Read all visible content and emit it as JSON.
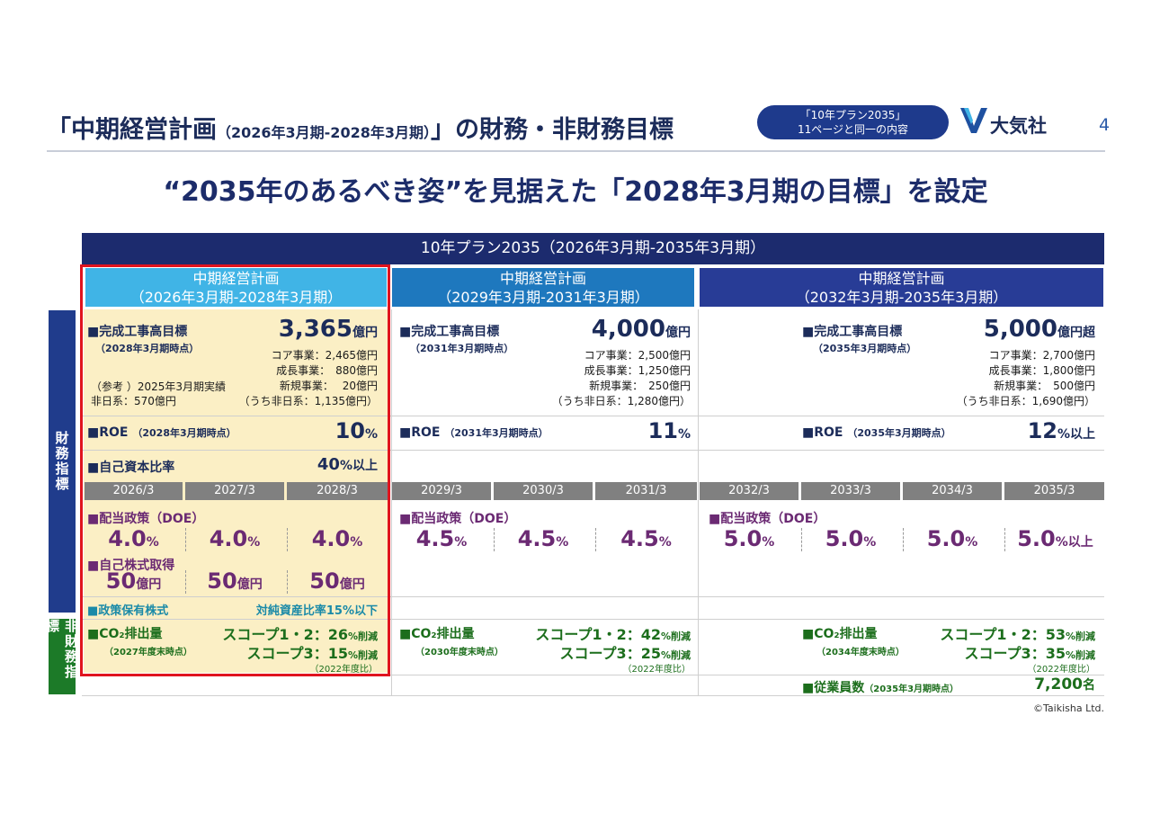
{
  "header": {
    "title_pre": "「中期経営計画",
    "title_paren": "（2026年3月期-2028年3月期）",
    "title_post": "」の財務・非財務目標",
    "ref_line1": "「10年プラン2035」",
    "ref_line2": "11ページと同一の内容",
    "logo_text": "大気社",
    "page_number": "4"
  },
  "headline": "“2035年のあるべき姿”を見据えた「2028年3月期の目標」を設定",
  "plan": {
    "title": "10年プラン2035（2026年3月期-2035年3月期）",
    "periods": [
      {
        "line1": "中期経営計画",
        "line2": "（2026年3月期-2028年3月期）"
      },
      {
        "line1": "中期経営計画",
        "line2": "（2029年3月期-2031年3月期）"
      },
      {
        "line1": "中期経営計画",
        "line2": "（2032年3月期-2035年3月期）"
      }
    ]
  },
  "side_labels": {
    "financial": "財務指標",
    "nonfinancial": "非財務指標"
  },
  "p1": {
    "orders_label": "■完成工事高目標",
    "orders_note": "（2028年3月期時点）",
    "orders_value": "3,365",
    "orders_unit": "億円",
    "core": "コア事業：2,465億円",
    "growth": "成長事業：　880億円",
    "newbiz": "新規事業：　 20億円",
    "non_japan": "（うち非日系：1,135億円）",
    "ref_line1": "（参考 ）2025年3月期実績",
    "ref_line2": "非日系：570億円",
    "roe_label": "■ROE",
    "roe_note": "（2028年3月期時点）",
    "roe_value": "10",
    "roe_unit": "%",
    "equity_label": "■自己資本比率",
    "equity_value": "40",
    "equity_unit": "%以上",
    "doe_label": "■配当政策（DOE）",
    "doe_values": [
      "4.0",
      "4.0",
      "4.0"
    ],
    "doe_unit": "%",
    "buyback_label": "■自己株式取得",
    "buyback_values": [
      "50",
      "50",
      "50"
    ],
    "buyback_unit": "億円",
    "policy_label": "■政策保有株式",
    "policy_value": "対純資産比率15%以下",
    "co2_label": "■CO₂排出量",
    "co2_note": "（2027年度末時点）",
    "scope12": "スコープ1・2：26",
    "scope3": "スコープ3：15",
    "reduction": "%削減",
    "base_note": "（2022年度比）"
  },
  "p2": {
    "orders_label": "■完成工事高目標",
    "orders_note": "（2031年3月期時点）",
    "orders_value": "4,000",
    "orders_unit": "億円",
    "core": "コア事業：2,500億円",
    "growth": "成長事業：1,250億円",
    "newbiz": "新規事業：　250億円",
    "non_japan": "（うち非日系：1,280億円）",
    "roe_label": "■ROE",
    "roe_note": "（2031年3月期時点）",
    "roe_value": "11",
    "roe_unit": "%",
    "doe_label": "■配当政策（DOE）",
    "doe_values": [
      "4.5",
      "4.5",
      "4.5"
    ],
    "doe_unit": "%",
    "co2_label": "■CO₂排出量",
    "co2_note": "（2030年度末時点）",
    "scope12": "スコープ1・2：42",
    "scope3": "スコープ3：25",
    "reduction": "%削減",
    "base_note": "（2022年度比）"
  },
  "p3": {
    "orders_label": "■完成工事高目標",
    "orders_note": "（2035年3月期時点）",
    "orders_value": "5,000",
    "orders_unit": "億円超",
    "core": "コア事業：2,700億円",
    "growth": "成長事業：1,800億円",
    "newbiz": "新規事業：　500億円",
    "non_japan": "（うち非日系：1,690億円）",
    "roe_label": "■ROE",
    "roe_note": "（2035年3月期時点）",
    "roe_value": "12",
    "roe_unit": "%以上",
    "doe_label": "■配当政策（DOE）",
    "doe_values": [
      "5.0",
      "5.0",
      "5.0",
      "5.0"
    ],
    "doe_units": [
      "%",
      "%",
      "%",
      "%以上"
    ],
    "co2_label": "■CO₂排出量",
    "co2_note": "（2034年度末時点）",
    "scope12": "スコープ1・2：53",
    "scope3": "スコープ3：35",
    "reduction": "%削減",
    "base_note": "（2022年度比）",
    "employees_label": "■従業員数",
    "employees_note": "（2035年3月期時点）",
    "employees_value": "7,200",
    "employees_unit": "名"
  },
  "years": [
    "2026/3",
    "2027/3",
    "2028/3",
    "2029/3",
    "2030/3",
    "2031/3",
    "2032/3",
    "2033/3",
    "2034/3",
    "2035/3"
  ],
  "copyright": "©Taikisha Ltd.",
  "colors": {
    "navy": "#1c2c5a",
    "plan_bar": "#1c2b6e",
    "p1_header": "#40b4e6",
    "p2_header": "#1e78be",
    "p3_header": "#283c96",
    "p1_bg": "#fbefc5",
    "highlight": "#e0141e",
    "purple": "#6b2a73",
    "green": "#1c6e1c"
  }
}
